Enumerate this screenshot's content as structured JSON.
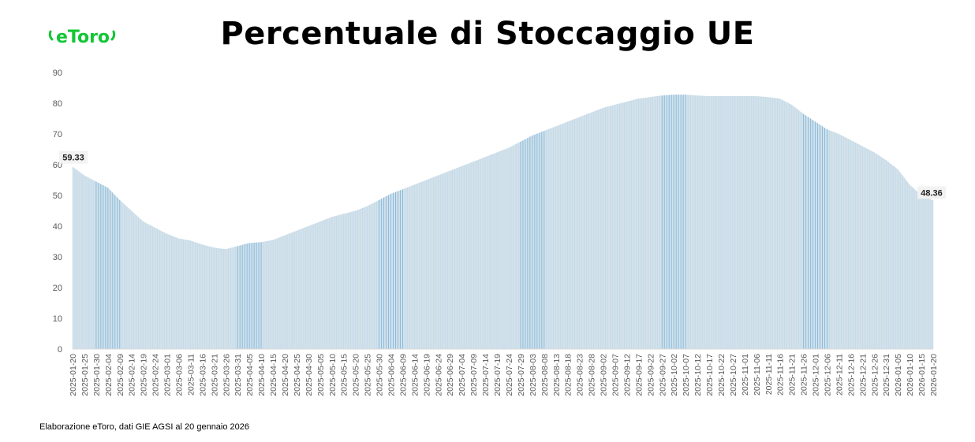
{
  "header": {
    "title": "Percentuale di Stoccaggio UE",
    "logo_text": "eToro"
  },
  "footer": {
    "source": "Elaborazione eToro, dati GIE AGSI al 20 gennaio 2026"
  },
  "colors": {
    "fill": "#d3e1ea",
    "line": "#a9cfe8",
    "highlight": "#7fb8dc",
    "brand": "#13c636"
  },
  "chart_data": {
    "type": "area",
    "title": "Percentuale di Stoccaggio UE",
    "xlabel": "",
    "ylabel": "",
    "ylim": [
      0,
      90
    ],
    "yticks": [
      0,
      10,
      20,
      30,
      40,
      50,
      60,
      70,
      80,
      90
    ],
    "grid": false,
    "annotations": [
      {
        "date": "2025-01-20",
        "value": "59.33"
      },
      {
        "date": "2026-01-20",
        "value": "48.36"
      }
    ],
    "x": [
      "2025-01-20",
      "2025-01-25",
      "2025-01-30",
      "2025-02-04",
      "2025-02-09",
      "2025-02-14",
      "2025-02-19",
      "2025-02-24",
      "2025-03-01",
      "2025-03-06",
      "2025-03-11",
      "2025-03-16",
      "2025-03-21",
      "2025-03-26",
      "2025-03-31",
      "2025-04-05",
      "2025-04-10",
      "2025-04-15",
      "2025-04-20",
      "2025-04-25",
      "2025-04-30",
      "2025-05-05",
      "2025-05-10",
      "2025-05-15",
      "2025-05-20",
      "2025-05-25",
      "2025-05-30",
      "2025-06-04",
      "2025-06-09",
      "2025-06-14",
      "2025-06-19",
      "2025-06-24",
      "2025-06-29",
      "2025-07-04",
      "2025-07-09",
      "2025-07-14",
      "2025-07-19",
      "2025-07-24",
      "2025-07-29",
      "2025-08-03",
      "2025-08-08",
      "2025-08-13",
      "2025-08-18",
      "2025-08-23",
      "2025-08-28",
      "2025-09-02",
      "2025-09-07",
      "2025-09-12",
      "2025-09-17",
      "2025-09-22",
      "2025-09-27",
      "2025-10-02",
      "2025-10-07",
      "2025-10-12",
      "2025-10-17",
      "2025-10-22",
      "2025-10-27",
      "2025-11-01",
      "2025-11-06",
      "2025-11-11",
      "2025-11-16",
      "2025-11-21",
      "2025-11-26",
      "2025-12-01",
      "2025-12-06",
      "2025-12-11",
      "2025-12-16",
      "2025-12-21",
      "2025-12-26",
      "2025-12-31",
      "2026-01-05",
      "2026-01-10",
      "2026-01-15",
      "2026-01-20"
    ],
    "values": [
      59.33,
      56.5,
      54.5,
      52.5,
      48.5,
      45,
      41.5,
      39.5,
      37.5,
      36,
      35.3,
      34,
      33,
      32.5,
      33.5,
      34.5,
      34.8,
      35.5,
      37,
      38.5,
      40,
      41.5,
      43,
      44,
      45,
      46.5,
      48.5,
      50.5,
      52,
      53.5,
      55,
      56.5,
      58,
      59.5,
      61,
      62.5,
      64,
      65.5,
      67.5,
      69.5,
      71,
      72.5,
      74,
      75.5,
      77,
      78.5,
      79.5,
      80.5,
      81.5,
      82,
      82.5,
      82.8,
      82.8,
      82.5,
      82.3,
      82.3,
      82.3,
      82.3,
      82.3,
      82,
      81.5,
      79.5,
      76.5,
      74,
      71.5,
      70,
      68,
      66,
      64,
      61.5,
      58.5,
      53.5,
      50,
      48.36
    ],
    "highlight_ranges": [
      [
        "2025-01-30",
        "2025-02-09"
      ],
      [
        "2025-03-31",
        "2025-04-10"
      ],
      [
        "2025-05-30",
        "2025-06-09"
      ],
      [
        "2025-07-29",
        "2025-08-08"
      ],
      [
        "2025-09-27",
        "2025-10-07"
      ],
      [
        "2025-11-26",
        "2025-12-06"
      ]
    ]
  }
}
